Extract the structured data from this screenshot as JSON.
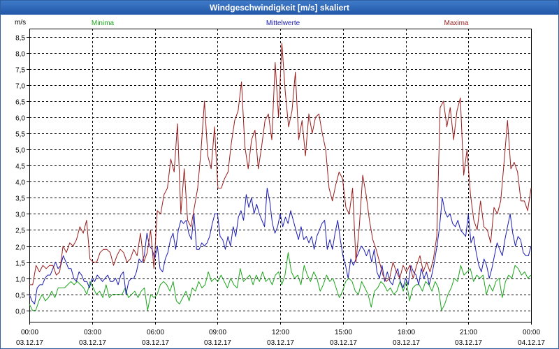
{
  "window": {
    "title": "Windgeschwindigkeit [m/s] skaliert"
  },
  "chart_data": {
    "type": "line",
    "title": "Windgeschwindigkeit [m/s] skaliert",
    "ylabel": "m/s",
    "ylim": [
      -0.35,
      8.75
    ],
    "yticks": [
      0.0,
      0.5,
      1.0,
      1.5,
      2.0,
      2.5,
      3.0,
      3.5,
      4.0,
      4.5,
      5.0,
      5.5,
      6.0,
      6.5,
      7.0,
      7.5,
      8.0,
      8.5
    ],
    "ytick_labels": [
      "0,0",
      "0,5",
      "1,0",
      "1,5",
      "2,0",
      "2,5",
      "3,0",
      "3,5",
      "4,0",
      "4,5",
      "5,0",
      "5,5",
      "6,0",
      "6,5",
      "7,0",
      "7,5",
      "8,0",
      "8,5"
    ],
    "xlim": [
      0,
      24
    ],
    "xticks": [
      0,
      3,
      6,
      9,
      12,
      15,
      18,
      21,
      24
    ],
    "xtick_labels": [
      {
        "time": "00:00",
        "date": "03.12.17"
      },
      {
        "time": "03:00",
        "date": "03.12.17"
      },
      {
        "time": "06:00",
        "date": "03.12.17"
      },
      {
        "time": "09:00",
        "date": "03.12.17"
      },
      {
        "time": "12:00",
        "date": "03.12.17"
      },
      {
        "time": "15:00",
        "date": "03.12.17"
      },
      {
        "time": "18:00",
        "date": "03.12.17"
      },
      {
        "time": "21:00",
        "date": "03.12.17"
      },
      {
        "time": "00:00",
        "date": "04.12.17"
      }
    ],
    "grid": true,
    "legend_position": "top",
    "series": [
      {
        "name": "Minima",
        "color": "#1aa51a",
        "values": [
          0.2,
          0.0,
          0.0,
          0.3,
          0.5,
          0.3,
          0.4,
          0.6,
          0.4,
          0.7,
          0.7,
          0.7,
          0.8,
          0.9,
          0.8,
          0.9,
          0.8,
          0.7,
          0.5,
          0.9,
          0.7,
          0.5,
          0.6,
          0.4,
          0.8,
          0.4,
          0.5,
          0.5,
          0.5,
          0.5,
          0.7,
          0.4,
          0.5,
          0.6,
          0.4,
          0.6,
          0.7,
          0.0,
          0.5,
          0.4,
          0.5,
          0.8,
          0.9,
          0.8,
          0.6,
          0.9,
          0.3,
          0.2,
          0.4,
          0.6,
          0.3,
          0.7,
          0.6,
          0.9,
          0.7,
          0.8,
          1.2,
          0.9,
          1.0,
          0.9,
          1.1,
          0.9,
          0.7,
          1.0,
          0.8,
          0.7,
          1.3,
          0.9,
          1.0,
          1.1,
          0.8,
          1.1,
          0.9,
          1.2,
          0.9,
          1.0,
          0.8,
          1.1,
          1.2,
          0.8,
          1.1,
          1.8,
          1.2,
          1.0,
          1.1,
          0.8,
          1.4,
          1.1,
          0.9,
          1.2,
          1.0,
          0.6,
          0.8,
          1.1,
          0.9,
          1.0,
          0.7,
          0.4,
          0.6,
          0.9,
          1.0,
          0.9,
          0.6,
          0.5,
          0.9,
          0.7,
          0.5,
          0.1,
          0.6,
          0.7,
          0.9,
          0.8,
          0.6,
          0.7,
          0.5,
          0.6,
          0.9,
          0.6,
          0.9,
          0.3,
          0.7,
          0.8,
          0.8,
          0.6,
          0.9,
          0.8,
          0.6,
          0.9,
          0.7,
          0.0,
          0.2,
          0.5,
          0.7,
          1.0,
          0.9,
          1.4,
          1.1,
          1.2,
          1.3,
          0.9,
          1.1,
          1.0,
          1.1,
          0.5,
          0.8,
          0.6,
          0.9,
          1.0,
          0.4,
          0.9,
          1.1,
          1.0,
          1.4,
          1.3,
          1.1,
          1.2,
          1.0,
          1.1
        ]
      },
      {
        "name": "Mittelwerte",
        "color": "#1a1ab4",
        "values": [
          0.5,
          0.3,
          0.2,
          0.7,
          0.8,
          0.8,
          1.0,
          1.1,
          1.1,
          1.3,
          1.5,
          1.3,
          1.4,
          1.7,
          1.5,
          1.3,
          1.3,
          1.0,
          0.9,
          1.2,
          1.1,
          0.9,
          0.9,
          0.7,
          1.0,
          0.9,
          1.1,
          1.0,
          0.9,
          1.0,
          1.1,
          0.9,
          0.9,
          1.0,
          0.8,
          1.1,
          1.2,
          0.5,
          0.9,
          1.0,
          1.0,
          1.2,
          1.6,
          1.5,
          1.7,
          2.4,
          2.0,
          1.9,
          1.6,
          2.0,
          1.3,
          1.2,
          1.6,
          1.8,
          2.2,
          2.4,
          1.9,
          2.5,
          2.8,
          2.7,
          2.8,
          2.4,
          2.2,
          3.0,
          1.9,
          1.9,
          2.1,
          2.0,
          2.1,
          2.3,
          2.7,
          3.0,
          3.0,
          2.3,
          2.2,
          1.9,
          2.3,
          2.0,
          2.6,
          2.3,
          2.9,
          3.1,
          2.8,
          3.6,
          3.2,
          3.5,
          3.0,
          3.3,
          3.0,
          2.8,
          2.6,
          3.8,
          3.4,
          2.7,
          2.4,
          2.6,
          3.0,
          2.6,
          2.9,
          2.7,
          3.1,
          2.8,
          2.5,
          2.2,
          2.6,
          2.2,
          2.3,
          2.1,
          2.3,
          1.9,
          2.3,
          2.5,
          2.7,
          2.8,
          1.9,
          2.2,
          1.9,
          2.4,
          2.8,
          2.2,
          1.7,
          1.4,
          1.0,
          1.6,
          1.4,
          1.6,
          1.8,
          2.0,
          1.9,
          1.7,
          1.9,
          1.5,
          1.9,
          1.2,
          1.0,
          1.4,
          0.9,
          1.2,
          0.9,
          0.8,
          1.1,
          1.3,
          0.9,
          0.7,
          1.0,
          0.8,
          1.4,
          1.2,
          1.1,
          0.8,
          1.3,
          1.0,
          1.2,
          0.8,
          1.1,
          1.5,
          2.0,
          2.6,
          3.5,
          3.1,
          2.9,
          3.0,
          2.7,
          2.6,
          2.8,
          2.5,
          2.4,
          2.3,
          3.0,
          2.1,
          2.3,
          1.8,
          1.4,
          1.2,
          1.6,
          1.4,
          1.0,
          1.3,
          1.7,
          2.1,
          1.9,
          1.7,
          2.2,
          2.6,
          3.0,
          2.4,
          2.0,
          2.3,
          2.2,
          1.8,
          1.7,
          1.7,
          2.0
        ]
      },
      {
        "name": "Maxima",
        "color": "#9b1c1c",
        "values": [
          0.8,
          0.8,
          1.4,
          1.2,
          1.4,
          1.3,
          1.4,
          1.4,
          1.1,
          1.2,
          2.0,
          1.8,
          2.1,
          2.0,
          2.2,
          2.6,
          2.4,
          2.8,
          1.6,
          1.5,
          1.5,
          1.8,
          1.9,
          1.9,
          1.8,
          1.4,
          1.7,
          1.9,
          1.8,
          1.5,
          1.6,
          1.9,
          1.7,
          2.4,
          1.5,
          1.8,
          2.5,
          1.3,
          3.1,
          3.0,
          3.6,
          3.8,
          4.7,
          4.3,
          5.8,
          3.0,
          4.4,
          2.8,
          2.6,
          3.2,
          3.8,
          5.0,
          6.5,
          4.8,
          4.4,
          5.7,
          3.8,
          3.8,
          4.1,
          4.3,
          5.2,
          5.9,
          6.2,
          7.1,
          5.1,
          4.4,
          5.3,
          5.6,
          4.4,
          5.1,
          5.9,
          6.1,
          5.3,
          7.7,
          6.0,
          8.3,
          6.8,
          5.7,
          6.2,
          7.4,
          5.3,
          5.9,
          4.8,
          6.1,
          5.5,
          6.0,
          6.1,
          5.5,
          5.0,
          3.8,
          3.4,
          3.9,
          4.3,
          4.1,
          3.2,
          3.0,
          3.8,
          1.5,
          2.6,
          4.2,
          3.6,
          2.8,
          2.2,
          1.9,
          1.5,
          1.1,
          0.9,
          1.0,
          1.5,
          1.2,
          1.0,
          1.4,
          1.2,
          1.4,
          1.0,
          1.4,
          1.7,
          1.2,
          1.5,
          1.2,
          1.6,
          2.3,
          6.3,
          6.5,
          5.7,
          6.3,
          5.3,
          6.2,
          6.6,
          4.2,
          5.0,
          3.6,
          2.8,
          2.5,
          3.4,
          2.6,
          2.5,
          2.1,
          3.2,
          3.0,
          3.4,
          4.6,
          5.9,
          4.4,
          4.6,
          4.3,
          3.4,
          3.4,
          3.1,
          3.8
        ]
      }
    ]
  }
}
